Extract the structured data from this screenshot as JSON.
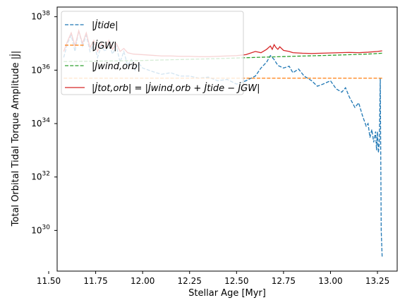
{
  "chart_data": {
    "type": "line",
    "xlabel": "Stellar Age [Myr]",
    "ylabel": "Total Orbital Tidal Torque Amplitude |J̇|",
    "x_scale": "linear",
    "y_scale": "log",
    "xlim": [
      11.545,
      13.355
    ],
    "ylim": [
      3e+28,
      2.3e+38
    ],
    "x_ticks": [
      11.5,
      11.75,
      12.0,
      12.25,
      12.5,
      12.75,
      13.0,
      13.25
    ],
    "x_tick_labels": [
      "11.50",
      "11.75",
      "12.00",
      "12.25",
      "12.50",
      "12.75",
      "13.00",
      "13.25"
    ],
    "y_ticks": [
      1e+30,
      1e+32,
      1e+34,
      1e+36,
      1e+38
    ],
    "y_tick_labels": [
      {
        "base": "10",
        "exp": "30"
      },
      {
        "base": "10",
        "exp": "32"
      },
      {
        "base": "10",
        "exp": "34"
      },
      {
        "base": "10",
        "exp": "36"
      },
      {
        "base": "10",
        "exp": "38"
      }
    ],
    "grid": false,
    "legend": {
      "position": "upper-left"
    },
    "series": [
      {
        "name": "|J̇tide|",
        "color": "#1f77b4",
        "style": "dashed",
        "x": [
          11.58,
          11.6,
          11.62,
          11.64,
          11.66,
          11.68,
          11.7,
          11.72,
          11.74,
          11.76,
          11.78,
          11.8,
          11.82,
          11.84,
          11.86,
          11.88,
          11.9,
          11.92,
          11.94,
          11.96,
          11.98,
          12.0,
          12.05,
          12.1,
          12.15,
          12.2,
          12.25,
          12.3,
          12.35,
          12.4,
          12.45,
          12.5,
          12.55,
          12.6,
          12.63,
          12.66,
          12.68,
          12.7,
          12.72,
          12.75,
          12.78,
          12.8,
          12.83,
          12.86,
          12.9,
          12.93,
          12.96,
          13.0,
          13.03,
          13.06,
          13.08,
          13.1,
          13.13,
          13.15,
          13.17,
          13.19,
          13.2,
          13.21,
          13.22,
          13.23,
          13.24,
          13.245,
          13.25,
          13.255,
          13.26,
          13.265,
          13.27,
          13.275
        ],
        "y": [
          3e+36,
          1e+37,
          2e+37,
          5e+36,
          3e+37,
          8e+36,
          2e+37,
          5e+36,
          1e+37,
          3e+36,
          8e+36,
          5e+36,
          1e+37,
          4e+36,
          8e+36,
          2e+36,
          5e+36,
          1.5e+36,
          2.5e+36,
          1e+36,
          1.8e+36,
          1.2e+36,
          9e+35,
          7e+35,
          8e+35,
          6e+35,
          6e+35,
          5e+35,
          5.5e+35,
          4e+35,
          4.5e+35,
          3e+35,
          4e+35,
          6e+35,
          1.2e+36,
          2e+36,
          3.5e+36,
          2.5e+36,
          1.5e+36,
          1.2e+36,
          1.4e+36,
          8e+35,
          1.1e+36,
          6e+35,
          4e+35,
          2.5e+35,
          3e+35,
          4e+35,
          2e+35,
          1.5e+35,
          2.2e+35,
          1e+35,
          4e+34,
          6e+34,
          2e+34,
          8e+33,
          1e+34,
          3e+33,
          6e+33,
          2e+33,
          5e+33,
          1e+33,
          5e+33,
          8e+32,
          2e+33,
          5e+35,
          1e+30,
          1e+29
        ]
      },
      {
        "name": "|J̇GW|",
        "color": "#ff7f0e",
        "style": "dashed",
        "x": [
          11.58,
          13.275
        ],
        "y": [
          5e+35,
          5e+35
        ]
      },
      {
        "name": "|J̇wind,orb|",
        "color": "#2ca02c",
        "style": "dashed",
        "x": [
          11.58,
          11.8,
          12.0,
          12.2,
          12.4,
          12.6,
          12.8,
          13.0,
          13.2,
          13.275
        ],
        "y": [
          2.1e+36,
          2.2e+36,
          2.3e+36,
          2.5e+36,
          2.7e+36,
          3e+36,
          3.3e+36,
          3.6e+36,
          4e+36,
          4.3e+36
        ]
      },
      {
        "name": "|J̇tot,orb| = |J̇wind,orb + J̇tide − J̇GW|",
        "color": "#d62728",
        "style": "solid",
        "x": [
          11.58,
          11.6,
          11.62,
          11.64,
          11.66,
          11.68,
          11.7,
          11.72,
          11.74,
          11.76,
          11.78,
          11.8,
          11.82,
          11.84,
          11.86,
          11.88,
          11.9,
          11.92,
          11.95,
          12.0,
          12.05,
          12.1,
          12.15,
          12.2,
          12.25,
          12.3,
          12.35,
          12.4,
          12.45,
          12.5,
          12.55,
          12.6,
          12.63,
          12.66,
          12.68,
          12.69,
          12.7,
          12.71,
          12.72,
          12.73,
          12.75,
          12.78,
          12.8,
          12.85,
          12.9,
          12.95,
          13.0,
          13.05,
          13.1,
          13.15,
          13.2,
          13.25,
          13.275
        ],
        "y": [
          5e+36,
          1.2e+37,
          2.5e+37,
          8e+36,
          3e+37,
          1e+37,
          2.5e+37,
          7e+36,
          1.3e+37,
          5e+36,
          1e+37,
          7e+36,
          1.3e+37,
          6e+36,
          1e+37,
          5e+36,
          6.5e+36,
          4.5e+36,
          4e+36,
          3.8e+36,
          3.6e+36,
          3.4e+36,
          3.4e+36,
          3.3e+36,
          3.3e+36,
          3.2e+36,
          3.2e+36,
          3.3e+36,
          3.4e+36,
          3.5e+36,
          3.8e+36,
          5e+36,
          4.5e+36,
          6e+36,
          8e+36,
          6e+36,
          9e+36,
          7e+36,
          6e+36,
          7.5e+36,
          5.5e+36,
          5e+36,
          4.5e+36,
          4.3e+36,
          4.2e+36,
          4.3e+36,
          4.4e+36,
          4.5e+36,
          4.6e+36,
          4.5e+36,
          4.7e+36,
          5e+36,
          5.3e+36
        ]
      }
    ]
  }
}
